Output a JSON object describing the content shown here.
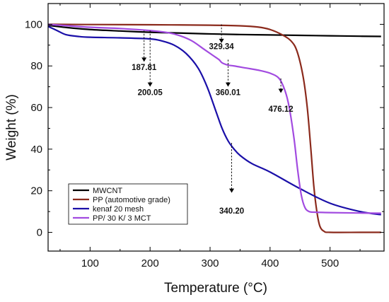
{
  "chart_data": {
    "type": "line",
    "xlabel": "Temperature (°C)",
    "ylabel": "Weight (%)",
    "xlim": [
      30,
      590
    ],
    "ylim": [
      -9,
      110
    ],
    "x_ticks": [
      100,
      200,
      300,
      400,
      500
    ],
    "y_ticks": [
      0,
      20,
      40,
      60,
      80,
      100
    ],
    "x_tick_labels": [
      "100",
      "200",
      "300",
      "400",
      "500"
    ],
    "y_tick_labels": [
      "0",
      "20",
      "40",
      "60",
      "80",
      "100"
    ],
    "grid": false,
    "legend_position": "bottom-left",
    "series": [
      {
        "name": "MWCNT",
        "color": "#000000",
        "x": [
          30,
          60,
          100,
          150,
          200,
          250,
          300,
          350,
          400,
          450,
          500,
          550,
          585
        ],
        "y": [
          99.5,
          98.5,
          97.5,
          96.8,
          96.2,
          95.8,
          95.4,
          95.1,
          94.9,
          94.7,
          94.5,
          94.3,
          94.2
        ]
      },
      {
        "name": "PP (automotive grade)",
        "color": "#8b2a1c",
        "x": [
          30,
          100,
          200,
          300,
          350,
          380,
          400,
          420,
          435,
          445,
          455,
          462,
          468,
          473,
          478,
          483,
          490,
          500,
          550,
          585
        ],
        "y": [
          100,
          99.9,
          99.8,
          99.6,
          99.3,
          98.7,
          97.5,
          95,
          92,
          87,
          75,
          60,
          40,
          22,
          10,
          3,
          0.5,
          0,
          0,
          0
        ]
      },
      {
        "name": "kenaf 20 mesh",
        "color": "#1a0fa8",
        "x": [
          30,
          45,
          60,
          80,
          100,
          150,
          200,
          220,
          240,
          260,
          280,
          295,
          310,
          320,
          330,
          340,
          350,
          370,
          400,
          450,
          500,
          550,
          585
        ],
        "y": [
          99,
          97,
          95,
          94.2,
          93.8,
          93.5,
          93,
          92,
          90,
          86,
          79,
          70,
          58,
          50,
          44,
          40,
          37,
          33,
          29,
          21,
          14,
          10,
          8.5
        ]
      },
      {
        "name": "PP/ 30 K/ 3 MCT",
        "color": "#a24be0",
        "x": [
          30,
          100,
          150,
          200,
          230,
          250,
          270,
          290,
          305,
          315,
          320,
          330,
          340,
          360,
          380,
          400,
          415,
          425,
          432,
          440,
          446,
          452,
          458,
          465,
          475,
          500,
          550,
          585
        ],
        "y": [
          100,
          98.6,
          98,
          97,
          96,
          94.5,
          92,
          88,
          85,
          83,
          81.5,
          80.4,
          80,
          79,
          78,
          76.5,
          74,
          68,
          60,
          45,
          30,
          18,
          12,
          10,
          9.7,
          9.5,
          9.3,
          9.2
        ]
      }
    ],
    "annotations": [
      {
        "label": "187.81",
        "x": 190,
        "y_from": 97,
        "y_to": 82,
        "label_y": 78
      },
      {
        "label": "200.05",
        "x": 200,
        "y_from": 97,
        "y_to": 70,
        "label_y": 66
      },
      {
        "label": "329.34",
        "x": 319,
        "y_from": 100,
        "y_to": 91,
        "label_y": 88
      },
      {
        "label": "360.01",
        "x": 330,
        "y_from": 83,
        "y_to": 70,
        "label_y": 66
      },
      {
        "label": "476.12",
        "x": 418,
        "y_from": 74,
        "y_to": 67,
        "label_y": 58
      },
      {
        "label": "340.20",
        "x": 336,
        "y_from": 43,
        "y_to": 19,
        "label_y": 9
      }
    ]
  }
}
